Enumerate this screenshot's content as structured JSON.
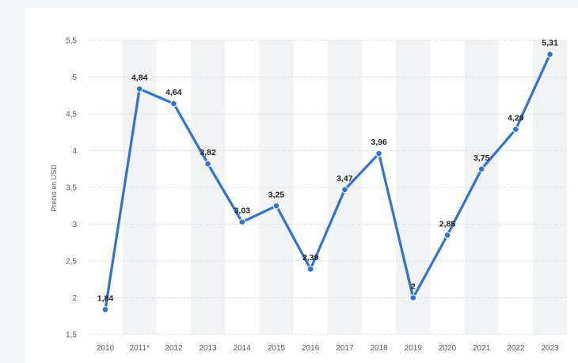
{
  "chart_data": {
    "type": "line",
    "title": "",
    "xlabel": "",
    "ylabel": "Precio en USD",
    "categories": [
      "2010",
      "2011*",
      "2012",
      "2013",
      "2014",
      "2015",
      "2016",
      "2017",
      "2018",
      "2019",
      "2020",
      "2021",
      "2022",
      "2023"
    ],
    "series": [
      {
        "name": "",
        "values": [
          1.84,
          4.84,
          4.64,
          3.82,
          3.03,
          3.25,
          2.39,
          3.47,
          3.96,
          2.0,
          2.85,
          3.75,
          4.29,
          5.31
        ],
        "labels": [
          "1,84",
          "4,84",
          "4,64",
          "3,82",
          "3,03",
          "3,25",
          "2,39",
          "3,47",
          "3,96",
          "2",
          "2,85",
          "3,75",
          "4,29",
          "5,31"
        ],
        "color": "#2f74d0"
      }
    ],
    "ylim": [
      1.5,
      5.5
    ],
    "yticks": [
      1.5,
      2,
      2.5,
      3,
      3.5,
      4,
      4.5,
      5,
      5.5
    ],
    "ytick_labels": [
      "1,5",
      "2",
      "2,5",
      "3",
      "3,5",
      "4",
      "4,5",
      "5",
      "5,5"
    ],
    "grid": true,
    "alternating_column_bands": true,
    "colors": {
      "line": "#2f74d0",
      "band": "#f2f3f5",
      "grid": "#d9dce0",
      "text": "#555b63",
      "label": "#222222"
    }
  }
}
